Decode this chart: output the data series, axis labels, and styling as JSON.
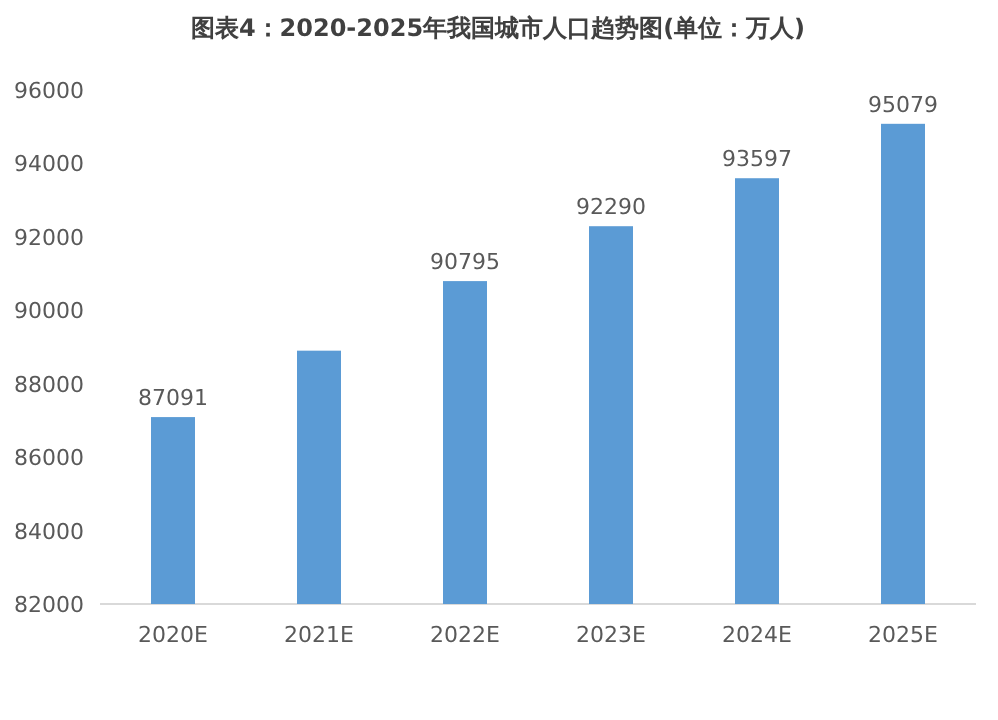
{
  "chart_data": {
    "type": "bar",
    "title": "图表4：2020-2025年我国城市人口趋势图(单位：万人)",
    "categories": [
      "2020E",
      "2021E",
      "2022E",
      "2023E",
      "2024E",
      "2025E"
    ],
    "values": [
      87091,
      88900,
      90795,
      92290,
      93597,
      95079
    ],
    "value_labels": [
      "87091",
      null,
      "90795",
      "92290",
      "93597",
      "95079"
    ],
    "color": "#5b9bd5",
    "ylim": [
      82000,
      96000
    ],
    "yticks": [
      82000,
      84000,
      86000,
      88000,
      90000,
      92000,
      94000,
      96000
    ],
    "grid": false,
    "legend": false
  }
}
